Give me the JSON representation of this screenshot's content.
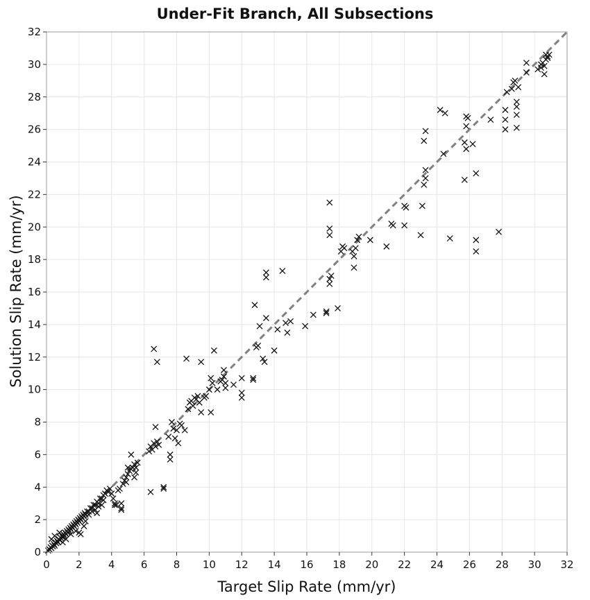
{
  "chart_data": {
    "type": "scatter",
    "title": "Under-Fit Branch, All Subsections",
    "xlabel": "Target Slip Rate (mm/yr)",
    "ylabel": "Solution Slip Rate (mm/yr)",
    "xlim": [
      0,
      32
    ],
    "ylim": [
      0,
      32
    ],
    "xticks": [
      "0",
      "2",
      "4",
      "6",
      "8",
      "10",
      "12",
      "14",
      "16",
      "18",
      "20",
      "22",
      "24",
      "26",
      "28",
      "30",
      "32"
    ],
    "yticks": [
      "0",
      "2",
      "4",
      "6",
      "8",
      "10",
      "12",
      "14",
      "16",
      "18",
      "20",
      "22",
      "24",
      "26",
      "28",
      "30",
      "32"
    ],
    "grid": true,
    "marker": "x",
    "marker_color": "#111111",
    "reference_line": {
      "style": "dashed",
      "color": "#808080",
      "from": [
        0,
        0
      ],
      "to": [
        32,
        32
      ]
    },
    "points": [
      [
        0.1,
        0.1
      ],
      [
        0.15,
        0.2
      ],
      [
        0.2,
        0.15
      ],
      [
        0.25,
        0.3
      ],
      [
        0.3,
        0.25
      ],
      [
        0.35,
        0.4
      ],
      [
        0.4,
        0.35
      ],
      [
        0.45,
        0.5
      ],
      [
        0.5,
        0.4
      ],
      [
        0.55,
        0.6
      ],
      [
        0.6,
        0.55
      ],
      [
        0.65,
        0.7
      ],
      [
        0.7,
        0.6
      ],
      [
        0.75,
        0.8
      ],
      [
        0.8,
        0.75
      ],
      [
        0.85,
        0.9
      ],
      [
        0.9,
        0.85
      ],
      [
        0.95,
        1.0
      ],
      [
        1.0,
        0.9
      ],
      [
        1.05,
        1.1
      ],
      [
        1.1,
        1.0
      ],
      [
        1.15,
        1.2
      ],
      [
        1.2,
        1.1
      ],
      [
        1.25,
        1.3
      ],
      [
        1.3,
        1.2
      ],
      [
        1.35,
        1.4
      ],
      [
        1.4,
        1.3
      ],
      [
        1.45,
        1.5
      ],
      [
        1.5,
        1.4
      ],
      [
        1.55,
        1.6
      ],
      [
        1.6,
        1.5
      ],
      [
        1.65,
        1.7
      ],
      [
        1.7,
        1.6
      ],
      [
        1.75,
        1.8
      ],
      [
        1.8,
        1.7
      ],
      [
        1.85,
        1.9
      ],
      [
        1.9,
        1.8
      ],
      [
        1.95,
        2.0
      ],
      [
        2.0,
        1.9
      ],
      [
        2.05,
        2.1
      ],
      [
        2.1,
        2.0
      ],
      [
        2.15,
        2.2
      ],
      [
        2.2,
        2.1
      ],
      [
        2.25,
        2.3
      ],
      [
        2.3,
        2.2
      ],
      [
        2.35,
        2.4
      ],
      [
        2.4,
        2.3
      ],
      [
        2.5,
        2.5
      ],
      [
        2.6,
        2.5
      ],
      [
        2.7,
        2.7
      ],
      [
        2.8,
        2.7
      ],
      [
        2.9,
        2.9
      ],
      [
        3.0,
        2.9
      ],
      [
        3.1,
        3.1
      ],
      [
        3.2,
        3.0
      ],
      [
        3.3,
        3.3
      ],
      [
        3.4,
        3.3
      ],
      [
        3.5,
        3.5
      ],
      [
        3.6,
        3.6
      ],
      [
        3.7,
        3.8
      ],
      [
        0.3,
        0.8
      ],
      [
        0.5,
        1.0
      ],
      [
        0.8,
        1.2
      ],
      [
        1.0,
        0.6
      ],
      [
        1.2,
        0.8
      ],
      [
        1.5,
        1.1
      ],
      [
        1.8,
        1.3
      ],
      [
        2.0,
        1.2
      ],
      [
        2.1,
        1.1
      ],
      [
        2.3,
        1.6
      ],
      [
        2.4,
        1.9
      ],
      [
        2.6,
        2.3
      ],
      [
        2.8,
        2.5
      ],
      [
        3.0,
        2.6
      ],
      [
        3.1,
        2.4
      ],
      [
        3.2,
        2.8
      ],
      [
        3.4,
        2.9
      ],
      [
        3.5,
        3.2
      ],
      [
        3.8,
        3.7
      ],
      [
        3.9,
        3.9
      ],
      [
        4.0,
        3.6
      ],
      [
        4.1,
        3.3
      ],
      [
        4.2,
        3.0
      ],
      [
        4.2,
        2.9
      ],
      [
        4.3,
        2.9
      ],
      [
        4.4,
        3.8
      ],
      [
        4.5,
        3.9
      ],
      [
        4.6,
        3.0
      ],
      [
        4.6,
        2.7
      ],
      [
        4.6,
        2.6
      ],
      [
        4.7,
        4.2
      ],
      [
        4.8,
        4.4
      ],
      [
        4.9,
        4.6
      ],
      [
        5.0,
        4.8
      ],
      [
        5.1,
        5.0
      ],
      [
        5.2,
        5.1
      ],
      [
        5.3,
        5.2
      ],
      [
        5.4,
        5.4
      ],
      [
        5.5,
        5.2
      ],
      [
        5.5,
        4.9
      ],
      [
        5.6,
        5.5
      ],
      [
        5.2,
        6.0
      ],
      [
        5.0,
        5.2
      ],
      [
        4.9,
        4.3
      ],
      [
        5.4,
        4.6
      ],
      [
        6.3,
        6.2
      ],
      [
        6.4,
        6.5
      ],
      [
        6.5,
        6.3
      ],
      [
        6.6,
        6.7
      ],
      [
        6.7,
        6.5
      ],
      [
        6.8,
        6.8
      ],
      [
        6.9,
        6.6
      ],
      [
        6.4,
        3.7
      ],
      [
        6.7,
        7.7
      ],
      [
        6.6,
        12.5
      ],
      [
        6.8,
        11.7
      ],
      [
        7.2,
        4.0
      ],
      [
        7.2,
        3.9
      ],
      [
        7.5,
        7.1
      ],
      [
        7.6,
        6.0
      ],
      [
        7.6,
        5.7
      ],
      [
        7.7,
        8.0
      ],
      [
        7.8,
        7.6
      ],
      [
        7.9,
        7.0
      ],
      [
        8.0,
        7.5
      ],
      [
        8.1,
        6.7
      ],
      [
        8.2,
        7.9
      ],
      [
        8.3,
        7.8
      ],
      [
        8.5,
        7.5
      ],
      [
        8.6,
        11.9
      ],
      [
        8.7,
        8.8
      ],
      [
        8.8,
        9.2
      ],
      [
        8.9,
        9.3
      ],
      [
        9.0,
        9.0
      ],
      [
        9.1,
        9.5
      ],
      [
        9.2,
        9.4
      ],
      [
        9.3,
        9.6
      ],
      [
        9.4,
        9.2
      ],
      [
        9.5,
        8.6
      ],
      [
        9.5,
        11.7
      ],
      [
        9.7,
        9.5
      ],
      [
        9.8,
        9.6
      ],
      [
        10.0,
        10.0
      ],
      [
        10.1,
        8.6
      ],
      [
        10.2,
        10.4
      ],
      [
        10.1,
        10.7
      ],
      [
        10.3,
        12.4
      ],
      [
        10.5,
        10.0
      ],
      [
        10.7,
        10.5
      ],
      [
        10.8,
        10.6
      ],
      [
        10.9,
        10.8
      ],
      [
        10.9,
        11.2
      ],
      [
        11.0,
        10.4
      ],
      [
        11.0,
        10.1
      ],
      [
        11.5,
        10.3
      ],
      [
        12.0,
        10.7
      ],
      [
        12.0,
        9.5
      ],
      [
        12.0,
        9.8
      ],
      [
        12.7,
        10.7
      ],
      [
        12.7,
        10.6
      ],
      [
        12.8,
        15.2
      ],
      [
        12.9,
        12.6
      ],
      [
        13.0,
        12.7
      ],
      [
        13.1,
        13.9
      ],
      [
        13.3,
        11.9
      ],
      [
        13.4,
        11.7
      ],
      [
        13.5,
        14.4
      ],
      [
        13.5,
        17.2
      ],
      [
        13.5,
        16.9
      ],
      [
        14.0,
        12.4
      ],
      [
        14.2,
        13.7
      ],
      [
        14.5,
        17.3
      ],
      [
        14.7,
        14.1
      ],
      [
        14.8,
        13.5
      ],
      [
        15.0,
        14.2
      ],
      [
        15.9,
        13.9
      ],
      [
        16.4,
        14.6
      ],
      [
        17.2,
        14.7
      ],
      [
        17.2,
        14.8
      ],
      [
        17.4,
        16.5
      ],
      [
        17.4,
        16.8
      ],
      [
        17.5,
        17.0
      ],
      [
        17.4,
        19.5
      ],
      [
        17.4,
        19.9
      ],
      [
        17.4,
        21.5
      ],
      [
        17.9,
        15.0
      ],
      [
        18.1,
        18.5
      ],
      [
        18.2,
        18.8
      ],
      [
        18.3,
        18.7
      ],
      [
        18.8,
        18.5
      ],
      [
        18.9,
        18.2
      ],
      [
        18.9,
        17.5
      ],
      [
        19.0,
        18.7
      ],
      [
        19.1,
        19.2
      ],
      [
        19.2,
        19.4
      ],
      [
        19.9,
        19.2
      ],
      [
        20.9,
        18.8
      ],
      [
        21.2,
        20.2
      ],
      [
        21.3,
        20.1
      ],
      [
        22.0,
        21.3
      ],
      [
        22.1,
        21.2
      ],
      [
        22.0,
        20.1
      ],
      [
        23.0,
        19.5
      ],
      [
        23.1,
        21.3
      ],
      [
        23.2,
        22.6
      ],
      [
        23.3,
        23.0
      ],
      [
        23.3,
        23.5
      ],
      [
        23.2,
        25.3
      ],
      [
        23.3,
        25.9
      ],
      [
        24.2,
        27.2
      ],
      [
        24.4,
        24.5
      ],
      [
        24.5,
        27.0
      ],
      [
        24.8,
        19.3
      ],
      [
        25.8,
        26.2
      ],
      [
        25.9,
        26.7
      ],
      [
        25.8,
        26.8
      ],
      [
        25.7,
        25.2
      ],
      [
        25.8,
        24.8
      ],
      [
        25.7,
        22.9
      ],
      [
        26.2,
        25.1
      ],
      [
        26.4,
        23.3
      ],
      [
        26.4,
        19.2
      ],
      [
        26.4,
        18.5
      ],
      [
        27.3,
        26.6
      ],
      [
        27.8,
        19.7
      ],
      [
        28.2,
        27.2
      ],
      [
        28.2,
        26.6
      ],
      [
        28.2,
        26.0
      ],
      [
        28.3,
        28.3
      ],
      [
        28.6,
        28.5
      ],
      [
        28.7,
        28.9
      ],
      [
        28.8,
        29.0
      ],
      [
        28.9,
        26.9
      ],
      [
        28.9,
        27.4
      ],
      [
        28.9,
        27.7
      ],
      [
        28.9,
        26.1
      ],
      [
        29.0,
        28.6
      ],
      [
        29.5,
        29.5
      ],
      [
        29.5,
        30.1
      ],
      [
        30.2,
        29.7
      ],
      [
        30.4,
        29.8
      ],
      [
        30.5,
        30.1
      ],
      [
        30.6,
        29.4
      ],
      [
        30.7,
        30.3
      ],
      [
        30.8,
        30.5
      ],
      [
        30.8,
        30.4
      ],
      [
        30.9,
        30.6
      ],
      [
        30.6,
        29.9
      ],
      [
        30.4,
        30.0
      ],
      [
        30.7,
        30.6
      ]
    ]
  }
}
